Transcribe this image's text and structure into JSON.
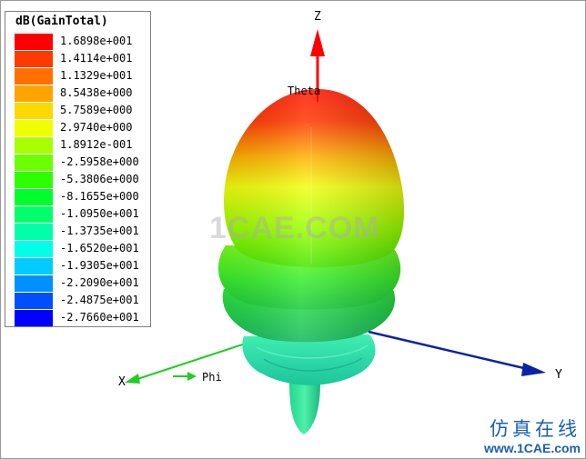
{
  "legend": {
    "title": "dB(GainTotal)",
    "levels": [
      {
        "label": "1.6898e+001",
        "color": "#ff0000"
      },
      {
        "label": "1.4114e+001",
        "color": "#ff3a00"
      },
      {
        "label": "1.1329e+001",
        "color": "#ff7000"
      },
      {
        "label": "8.5438e+000",
        "color": "#ffa300"
      },
      {
        "label": "5.7589e+000",
        "color": "#ffd800"
      },
      {
        "label": "2.9740e+000",
        "color": "#f0ff00"
      },
      {
        "label": "1.8912e-001",
        "color": "#a8ff00"
      },
      {
        "label": "-2.5958e+000",
        "color": "#6cff00"
      },
      {
        "label": "-5.3806e+000",
        "color": "#2eff00"
      },
      {
        "label": "-8.1655e+000",
        "color": "#00ff2a"
      },
      {
        "label": "-1.0950e+001",
        "color": "#00ff6a"
      },
      {
        "label": "-1.3735e+001",
        "color": "#00ffa8"
      },
      {
        "label": "-1.6520e+001",
        "color": "#00ffe6"
      },
      {
        "label": "-1.9305e+001",
        "color": "#00ccff"
      },
      {
        "label": "-2.2090e+001",
        "color": "#0090ff"
      },
      {
        "label": "-2.4875e+001",
        "color": "#0050ff"
      },
      {
        "label": "-2.7660e+001",
        "color": "#0000ff"
      }
    ]
  },
  "axes": {
    "z_label": "Z",
    "y_label": "Y",
    "x_label": "X",
    "theta_label": "Theta",
    "phi_label": "Phi"
  },
  "watermark": "1CAE.COM",
  "brand": {
    "chinese": "仿真在线",
    "url": "www.1CAE.com"
  }
}
